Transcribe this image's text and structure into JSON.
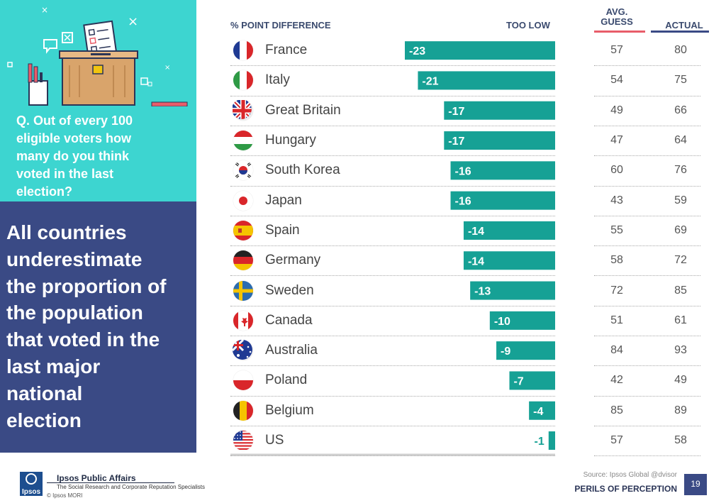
{
  "question": "Q.   Out of every 100\neligible voters how\nmany do you think\nvoted in the last\nelection?",
  "headline": "All countries\nunderestimate\nthe proportion of\nthe population\nthat voted in the\nlast major\nnational\nelection",
  "headers": {
    "point_difference": "% POINT DIFFERENCE",
    "too_low": "TOO LOW",
    "avg_guess": "AVG.\nGUESS",
    "actual": "ACTUAL"
  },
  "colors": {
    "bar": "#16a195",
    "bar_label": "#ffffff",
    "guess_line": "#e85d6a",
    "actual_line": "#3a4a85",
    "headline_bg": "#3a4a85",
    "question_bg": "#3dd5d0"
  },
  "chart_data": {
    "type": "bar",
    "title": "% POINT DIFFERENCE",
    "orientation": "horizontal",
    "categories": [
      "France",
      "Italy",
      "Great Britain",
      "Hungary",
      "South Korea",
      "Japan",
      "Spain",
      "Germany",
      "Sweden",
      "Canada",
      "Australia",
      "Poland",
      "Belgium",
      "US"
    ],
    "values": [
      -23,
      -21,
      -17,
      -17,
      -16,
      -16,
      -14,
      -14,
      -13,
      -10,
      -9,
      -7,
      -4,
      -1
    ],
    "avg_guess": [
      57,
      54,
      49,
      47,
      60,
      43,
      55,
      58,
      72,
      51,
      84,
      42,
      85,
      57
    ],
    "actual": [
      80,
      75,
      66,
      64,
      76,
      59,
      69,
      72,
      85,
      61,
      93,
      49,
      89,
      58
    ],
    "xlim": [
      -23,
      0
    ],
    "direction_label": "TOO LOW"
  },
  "flags": [
    "france-flag-icon",
    "italy-flag-icon",
    "great-britain-flag-icon",
    "hungary-flag-icon",
    "south-korea-flag-icon",
    "japan-flag-icon",
    "spain-flag-icon",
    "germany-flag-icon",
    "sweden-flag-icon",
    "canada-flag-icon",
    "australia-flag-icon",
    "poland-flag-icon",
    "belgium-flag-icon",
    "us-flag-icon"
  ],
  "footer": {
    "source": "Source: Ipsos Global @dvisor",
    "perils": "PERILS OF PERCEPTION",
    "page": "19",
    "org_title": "Ipsos Public Affairs",
    "org_subtitle": "The Social Research and Corporate Reputation Specialists",
    "copyright": "© Ipsos MORI",
    "logo_text": "Ipsos"
  }
}
